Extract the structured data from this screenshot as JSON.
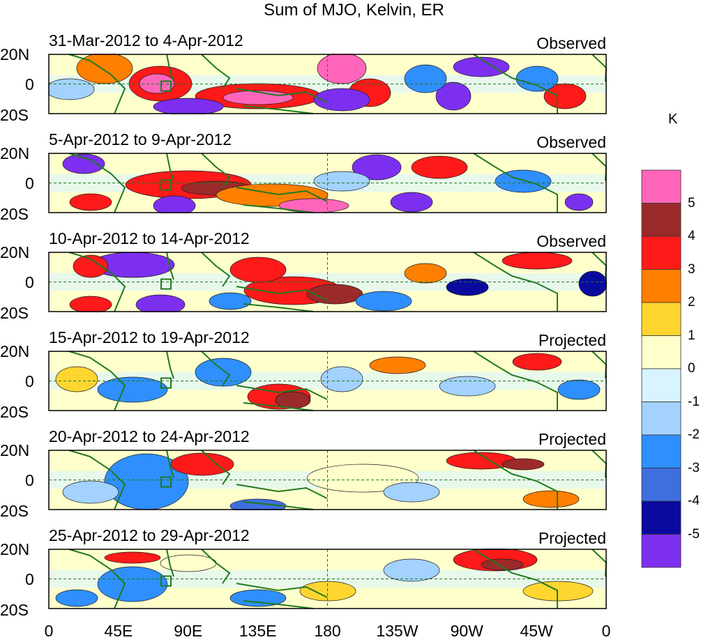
{
  "title": "Sum of MJO, Kelvin, ER",
  "panels": [
    {
      "dates": "31-Mar-2012 to 4-Apr-2012",
      "status": "Observed"
    },
    {
      "dates": "5-Apr-2012 to 9-Apr-2012",
      "status": "Observed"
    },
    {
      "dates": "10-Apr-2012 to 14-Apr-2012",
      "status": "Observed"
    },
    {
      "dates": "15-Apr-2012 to 19-Apr-2012",
      "status": "Projected"
    },
    {
      "dates": "20-Apr-2012 to 24-Apr-2012",
      "status": "Projected"
    },
    {
      "dates": "25-Apr-2012 to 29-Apr-2012",
      "status": "Projected"
    }
  ],
  "lat_labels": [
    "20N",
    "0",
    "20S"
  ],
  "lon_labels": [
    "0",
    "45E",
    "90E",
    "135E",
    "180",
    "135W",
    "90W",
    "45W",
    "0"
  ],
  "colorbar": {
    "unit": "K",
    "levels": [
      "5",
      "4",
      "3",
      "2",
      "1",
      "0",
      "-1",
      "-2",
      "-3",
      "-4",
      "-5"
    ],
    "colors": [
      "#ff66bb",
      "#9b2a2a",
      "#ff1a1a",
      "#ff7f00",
      "#ffd630",
      "#ffffcc",
      "#d8f4ff",
      "#a3d2ff",
      "#2f8fff",
      "#3f6fdf",
      "#0a0a9f",
      "#7d2ff0"
    ]
  }
}
